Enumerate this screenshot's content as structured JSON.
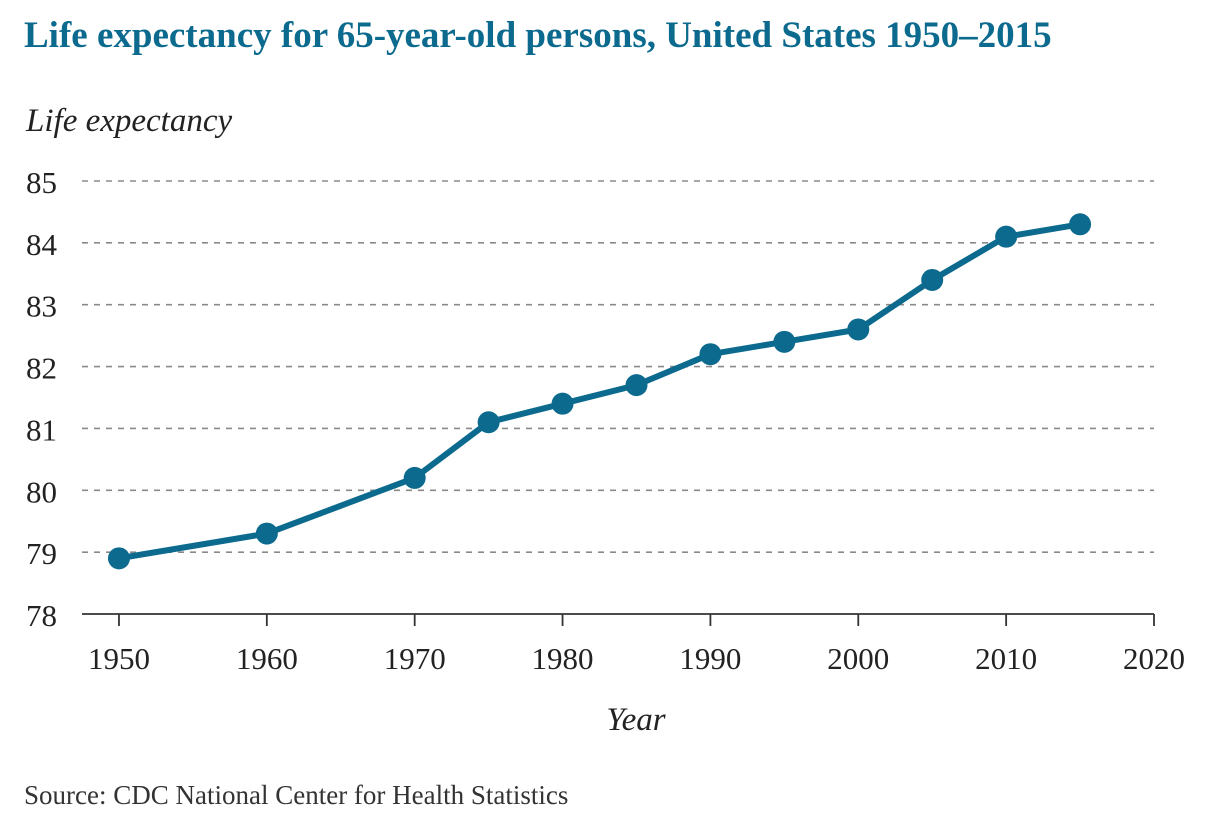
{
  "title": "Life expectancy for 65-year-old persons, United States 1950–2015",
  "source": "Source: CDC National Center for Health Statistics",
  "colors": {
    "title": "#0b6a8d",
    "line": "#0b6a8d",
    "grid": "#8a8a8a",
    "axis": "#333333",
    "text": "#222222"
  },
  "chart_data": {
    "type": "line",
    "title": "Life expectancy for 65-year-old persons, United States 1950–2015",
    "xlabel": "Year",
    "ylabel": "Life expectancy",
    "xlim": [
      1947.5,
      2020
    ],
    "ylim": [
      78,
      85
    ],
    "x_ticks": [
      1950,
      1960,
      1970,
      1980,
      1990,
      2000,
      2010,
      2020
    ],
    "y_ticks": [
      78,
      79,
      80,
      81,
      82,
      83,
      84,
      85
    ],
    "grid": "horizontal dashed",
    "x": [
      1950,
      1960,
      1970,
      1975,
      1980,
      1985,
      1990,
      1995,
      2000,
      2005,
      2010,
      2015
    ],
    "values": [
      78.9,
      79.3,
      80.2,
      81.1,
      81.4,
      81.7,
      82.2,
      82.4,
      82.6,
      83.4,
      84.1,
      84.3
    ]
  }
}
